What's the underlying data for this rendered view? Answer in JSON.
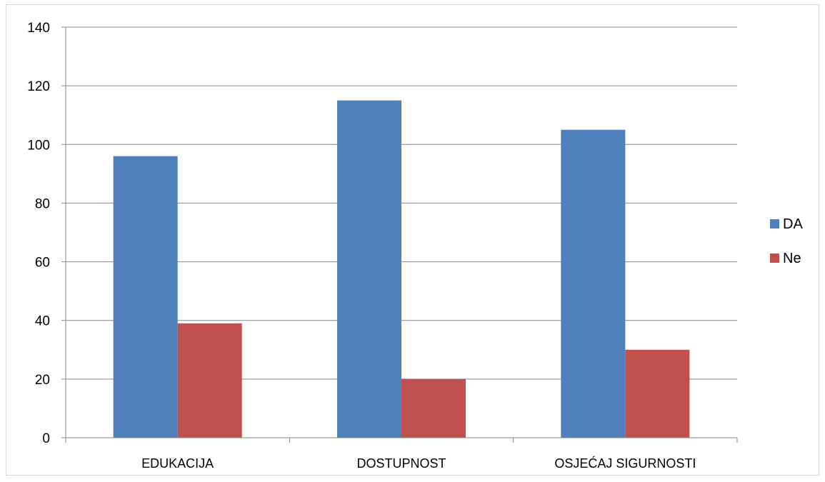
{
  "chart_data": {
    "type": "bar",
    "title": "",
    "xlabel": "",
    "ylabel": "",
    "categories": [
      "EDUKACIJA",
      "DOSTUPNOST",
      "OSJEĆAJ SIGURNOSTI"
    ],
    "series": [
      {
        "name": "DA",
        "values": [
          96,
          115,
          105
        ],
        "color": "#4F81BD"
      },
      {
        "name": "Ne",
        "values": [
          39,
          20,
          30
        ],
        "color": "#C0504D"
      }
    ],
    "ylim": [
      0,
      140
    ],
    "yticks": [
      "0",
      "20",
      "40",
      "60",
      "80",
      "100",
      "120",
      "140"
    ],
    "grid": true,
    "legend_position": "right"
  }
}
